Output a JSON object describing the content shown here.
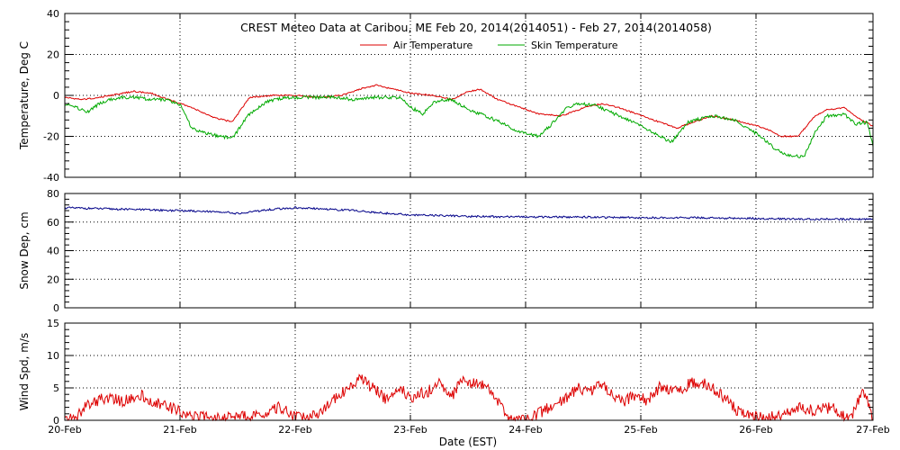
{
  "title": "CREST Meteo Data at Caribou, ME   Feb 20, 2014(2014051) - Feb 27, 2014(2014058)",
  "xlabel": "Date (EST)",
  "x_ticks": [
    "20-Feb",
    "21-Feb",
    "22-Feb",
    "23-Feb",
    "24-Feb",
    "25-Feb",
    "26-Feb",
    "27-Feb"
  ],
  "colors": {
    "air": "#dd0000",
    "skin": "#00aa00",
    "snow": "#000088",
    "wind": "#dd0000"
  },
  "chart_data": [
    {
      "type": "line",
      "ylabel": "Temperature, Deg C",
      "ylim": [
        -40,
        40
      ],
      "yticks": [
        -40,
        -20,
        0,
        20,
        40
      ],
      "xlim": [
        0,
        7
      ],
      "grid": true,
      "legend": "top-center",
      "series": [
        {
          "name": "Air Temperature",
          "x": [
            0,
            0.15,
            0.3,
            0.5,
            0.6,
            0.75,
            0.9,
            1.1,
            1.3,
            1.45,
            1.6,
            1.8,
            2.0,
            2.2,
            2.4,
            2.55,
            2.7,
            2.85,
            3.0,
            3.2,
            3.35,
            3.5,
            3.6,
            3.75,
            3.9,
            4.1,
            4.3,
            4.5,
            4.65,
            4.8,
            5.0,
            5.2,
            5.3,
            5.45,
            5.6,
            5.8,
            6.0,
            6.1,
            6.2,
            6.35,
            6.5,
            6.6,
            6.75,
            6.9,
            7.0
          ],
          "values": [
            -1,
            -2,
            -1,
            1,
            2,
            1,
            -2,
            -6,
            -11,
            -13,
            -1,
            0,
            0,
            -1,
            0,
            3,
            5,
            3,
            1,
            0,
            -2,
            2,
            3,
            -2,
            -5,
            -9,
            -10,
            -6,
            -4,
            -6,
            -10,
            -14,
            -16,
            -13,
            -10,
            -12,
            -15,
            -17,
            -20,
            -20,
            -10,
            -7,
            -6,
            -12,
            -15
          ]
        },
        {
          "name": "Skin Temperature",
          "x": [
            0,
            0.1,
            0.2,
            0.3,
            0.4,
            0.5,
            0.6,
            0.75,
            0.9,
            1.0,
            1.1,
            1.25,
            1.45,
            1.6,
            1.75,
            1.9,
            2.05,
            2.2,
            2.35,
            2.5,
            2.65,
            2.8,
            2.9,
            3.0,
            3.1,
            3.2,
            3.35,
            3.5,
            3.65,
            3.8,
            3.95,
            4.1,
            4.2,
            4.35,
            4.45,
            4.6,
            4.8,
            5.0,
            5.1,
            5.25,
            5.4,
            5.6,
            5.8,
            6.0,
            6.15,
            6.25,
            6.4,
            6.5,
            6.6,
            6.75,
            6.85,
            6.95,
            7.0
          ],
          "values": [
            -4,
            -6,
            -8,
            -4,
            -2,
            -1,
            -1,
            -2,
            -2,
            -5,
            -16,
            -19,
            -21,
            -9,
            -3,
            -1,
            -1,
            -1,
            -1,
            -2,
            -1,
            -1,
            -1,
            -6,
            -9,
            -3,
            -2,
            -7,
            -10,
            -14,
            -18,
            -20,
            -15,
            -6,
            -4,
            -5,
            -10,
            -15,
            -18,
            -23,
            -13,
            -10,
            -12,
            -19,
            -26,
            -29,
            -30,
            -18,
            -10,
            -9,
            -14,
            -13,
            -25
          ]
        }
      ]
    },
    {
      "type": "line",
      "ylabel": "Snow Dep, cm",
      "ylim": [
        0,
        80
      ],
      "yticks": [
        0,
        20,
        40,
        60,
        80
      ],
      "xlim": [
        0,
        7
      ],
      "grid": true,
      "series": [
        {
          "name": "",
          "x": [
            0,
            0.5,
            1.0,
            1.3,
            1.5,
            1.8,
            2.0,
            2.3,
            2.5,
            2.8,
            3.0,
            3.5,
            4.0,
            4.5,
            5.0,
            5.5,
            6.0,
            6.5,
            7.0
          ],
          "values": [
            70,
            69,
            68,
            67.5,
            66,
            69,
            70,
            69,
            68,
            66,
            65,
            64,
            63.5,
            63.5,
            63,
            63,
            62.5,
            62,
            62
          ]
        }
      ]
    },
    {
      "type": "line",
      "ylabel": "Wind Spd, m/s",
      "ylim": [
        0,
        15
      ],
      "yticks": [
        0,
        5,
        10,
        15
      ],
      "xlim": [
        0,
        7
      ],
      "grid": true,
      "series": [
        {
          "name": "",
          "x": [
            0,
            0.1,
            0.2,
            0.35,
            0.5,
            0.65,
            0.75,
            0.9,
            1.05,
            1.2,
            1.35,
            1.5,
            1.7,
            1.85,
            1.95,
            2.05,
            2.2,
            2.35,
            2.45,
            2.55,
            2.7,
            2.8,
            2.9,
            3.0,
            3.15,
            3.25,
            3.35,
            3.45,
            3.55,
            3.65,
            3.75,
            3.8,
            3.85,
            4.0,
            4.1,
            4.2,
            4.3,
            4.45,
            4.55,
            4.65,
            4.75,
            4.85,
            4.95,
            5.05,
            5.15,
            5.3,
            5.45,
            5.55,
            5.65,
            5.75,
            5.85,
            5.95,
            6.1,
            6.2,
            6.35,
            6.5,
            6.65,
            6.75,
            6.8,
            6.85,
            6.9,
            6.95,
            7.0
          ],
          "values": [
            0,
            0.5,
            2.5,
            3.5,
            3.0,
            4.0,
            3.0,
            2.0,
            1.0,
            0.5,
            0.3,
            0.5,
            1.0,
            2.0,
            1.0,
            0.3,
            1.0,
            3.5,
            5.0,
            6.5,
            4.5,
            3.0,
            5.0,
            3.5,
            4.5,
            6.0,
            3.5,
            6.5,
            5.5,
            5.5,
            3.0,
            1.5,
            0,
            0,
            1.0,
            2.0,
            3.0,
            5.0,
            4.5,
            5.5,
            4.0,
            3.0,
            4.0,
            3.0,
            5.0,
            4.5,
            6.0,
            5.5,
            4.5,
            3.0,
            1.0,
            0.5,
            0.3,
            1.0,
            2.0,
            1.5,
            2.0,
            0.5,
            0.2,
            2.0,
            4.0,
            3.5,
            0
          ]
        }
      ]
    }
  ]
}
